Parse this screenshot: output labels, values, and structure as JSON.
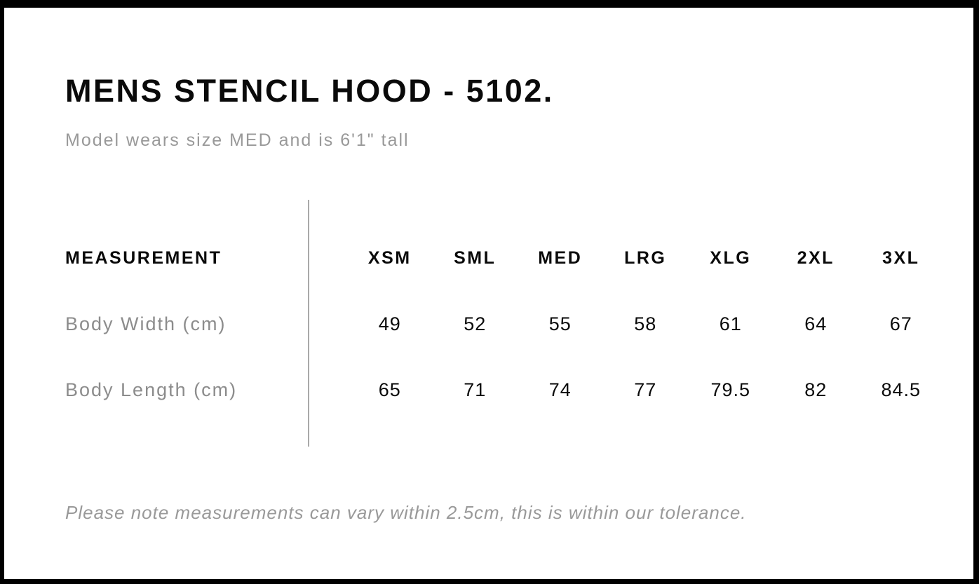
{
  "page": {
    "title": "MENS STENCIL HOOD - 5102.",
    "subtitle": "Model wears size MED and is 6'1\" tall",
    "tolerance_note": "Please note measurements can vary within 2.5cm, this is within our tolerance."
  },
  "size_chart": {
    "measurement_header": "MEASUREMENT",
    "sizes": [
      "XSM",
      "SML",
      "MED",
      "LRG",
      "XLG",
      "2XL",
      "3XL"
    ],
    "rows": [
      {
        "label": "Body Width (cm)",
        "values": [
          "49",
          "52",
          "55",
          "58",
          "61",
          "64",
          "67"
        ]
      },
      {
        "label": "Body Length (cm)",
        "values": [
          "65",
          "71",
          "74",
          "77",
          "79.5",
          "82",
          "84.5"
        ]
      }
    ]
  },
  "chart_data": {
    "type": "table",
    "title": "MENS STENCIL HOOD - 5102.",
    "columns": [
      "MEASUREMENT",
      "XSM",
      "SML",
      "MED",
      "LRG",
      "XLG",
      "2XL",
      "3XL"
    ],
    "rows": [
      [
        "Body Width (cm)",
        49,
        52,
        55,
        58,
        61,
        64,
        67
      ],
      [
        "Body Length (cm)",
        65,
        71,
        74,
        77,
        79.5,
        82,
        84.5
      ]
    ]
  },
  "colors": {
    "text_black": "#0a0a0a",
    "subtitle_gray": "#999999",
    "row_label_gray": "#8c8c8c",
    "divider_gray": "#a9a9a9",
    "border_black": "#000000",
    "background": "#ffffff"
  }
}
